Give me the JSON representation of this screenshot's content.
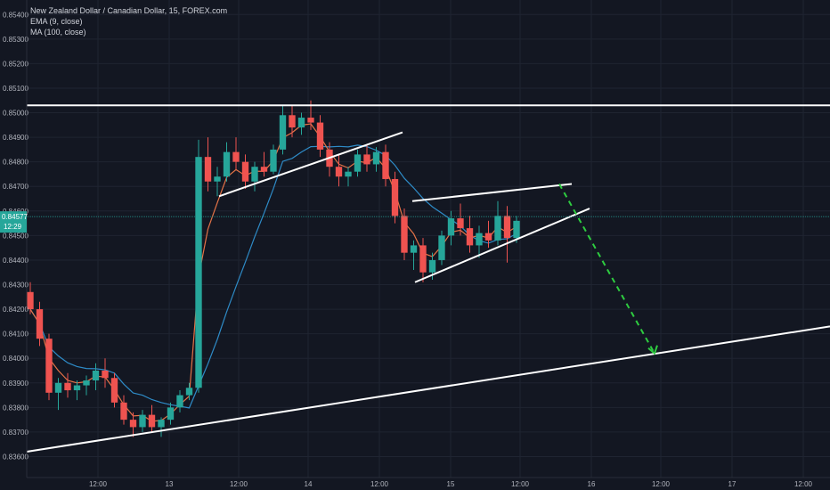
{
  "legend": {
    "title": "New Zealand Dollar / Canadian Dollar, 15, FOREX.com",
    "ema": "EMA (9, close)",
    "ma": "MA (100, close)"
  },
  "colors": {
    "background": "#131722",
    "candle_up": "#26a69a",
    "candle_down": "#ef5350",
    "ema": "#e57347",
    "ma": "#2e8bc7",
    "trendline": "#ffffff",
    "projection": "#2ecc40",
    "price_line": "#26a69a",
    "axis_text": "#b2b5be"
  },
  "chart_data": {
    "type": "candlestick",
    "symbol": "NZDCAD",
    "y_ticks": [
      "0.85400",
      "0.85300",
      "0.85200",
      "0.85100",
      "0.85000",
      "0.84900",
      "0.84800",
      "0.84700",
      "0.84600",
      "0.84500",
      "0.84400",
      "0.84300",
      "0.84200",
      "0.84100",
      "0.84000",
      "0.83900",
      "0.83800",
      "0.83700",
      "0.83600"
    ],
    "x_ticks": [
      "12:00",
      "13",
      "12:00",
      "14",
      "12:00",
      "15",
      "12:00",
      "16",
      "12:00",
      "17",
      "12:00"
    ],
    "ylim": [
      0.8358,
      0.8543
    ],
    "current_price": "0.84577",
    "countdown": "12:29",
    "candles_ohlc_approx": [
      [
        0.8427,
        0.8431,
        0.8418,
        0.842
      ],
      [
        0.842,
        0.8423,
        0.8405,
        0.8408
      ],
      [
        0.8408,
        0.841,
        0.8383,
        0.8386
      ],
      [
        0.8386,
        0.8392,
        0.8379,
        0.839
      ],
      [
        0.839,
        0.8394,
        0.8384,
        0.8387
      ],
      [
        0.8387,
        0.8391,
        0.8383,
        0.8389
      ],
      [
        0.8389,
        0.8393,
        0.8385,
        0.8391
      ],
      [
        0.8391,
        0.8398,
        0.8387,
        0.8395
      ],
      [
        0.8395,
        0.84,
        0.8388,
        0.8392
      ],
      [
        0.8392,
        0.8394,
        0.838,
        0.8382
      ],
      [
        0.8382,
        0.8385,
        0.8373,
        0.8375
      ],
      [
        0.8375,
        0.8378,
        0.8368,
        0.8372
      ],
      [
        0.8372,
        0.8379,
        0.837,
        0.8377
      ],
      [
        0.8377,
        0.8381,
        0.837,
        0.8372
      ],
      [
        0.8372,
        0.8376,
        0.8368,
        0.8375
      ],
      [
        0.8375,
        0.8382,
        0.8373,
        0.838
      ],
      [
        0.838,
        0.8387,
        0.8378,
        0.8385
      ],
      [
        0.8385,
        0.839,
        0.8383,
        0.8388
      ],
      [
        0.8388,
        0.8489,
        0.8386,
        0.8482
      ],
      [
        0.8482,
        0.849,
        0.8468,
        0.8472
      ],
      [
        0.8472,
        0.8478,
        0.8466,
        0.8474
      ],
      [
        0.8474,
        0.8488,
        0.8472,
        0.8484
      ],
      [
        0.8484,
        0.849,
        0.8477,
        0.848
      ],
      [
        0.848,
        0.8483,
        0.8469,
        0.8472
      ],
      [
        0.8472,
        0.848,
        0.8468,
        0.8478
      ],
      [
        0.8478,
        0.8484,
        0.8474,
        0.8476
      ],
      [
        0.8476,
        0.8487,
        0.8475,
        0.8485
      ],
      [
        0.8485,
        0.8503,
        0.8483,
        0.8499
      ],
      [
        0.8499,
        0.8503,
        0.849,
        0.8494
      ],
      [
        0.8494,
        0.85,
        0.8491,
        0.8498
      ],
      [
        0.8498,
        0.8505,
        0.8493,
        0.8496
      ],
      [
        0.8496,
        0.8499,
        0.8482,
        0.8485
      ],
      [
        0.8485,
        0.8488,
        0.8474,
        0.8478
      ],
      [
        0.8478,
        0.8483,
        0.847,
        0.8474
      ],
      [
        0.8474,
        0.8478,
        0.847,
        0.8476
      ],
      [
        0.8476,
        0.8485,
        0.8474,
        0.8483
      ],
      [
        0.8483,
        0.8487,
        0.8476,
        0.8479
      ],
      [
        0.8479,
        0.8486,
        0.8476,
        0.8484
      ],
      [
        0.8484,
        0.8487,
        0.847,
        0.8473
      ],
      [
        0.8473,
        0.8476,
        0.8455,
        0.8458
      ],
      [
        0.8458,
        0.8461,
        0.844,
        0.8443
      ],
      [
        0.8443,
        0.8448,
        0.8436,
        0.8446
      ],
      [
        0.8446,
        0.8449,
        0.8431,
        0.8435
      ],
      [
        0.8435,
        0.8443,
        0.8432,
        0.844
      ],
      [
        0.844,
        0.8452,
        0.8438,
        0.845
      ],
      [
        0.845,
        0.846,
        0.8446,
        0.8457
      ],
      [
        0.8457,
        0.8463,
        0.845,
        0.8453
      ],
      [
        0.8453,
        0.8458,
        0.8443,
        0.8446
      ],
      [
        0.8446,
        0.8454,
        0.8441,
        0.8451
      ],
      [
        0.8451,
        0.8456,
        0.8445,
        0.8448
      ],
      [
        0.8448,
        0.8464,
        0.8446,
        0.8458
      ],
      [
        0.8458,
        0.8462,
        0.8439,
        0.8449
      ],
      [
        0.8449,
        0.8458,
        0.8447,
        0.8456
      ]
    ],
    "trendlines": [
      {
        "name": "resistance",
        "price": 0.8503
      },
      {
        "name": "support-lower",
        "from_price": 0.8362,
        "to_price": 0.8413
      },
      {
        "name": "rising-line-1",
        "from_price": 0.8466,
        "to_price": 0.8492
      },
      {
        "name": "channel-upper",
        "from_price": 0.8464,
        "to_price": 0.8471
      },
      {
        "name": "channel-lower",
        "from_price": 0.8431,
        "to_price": 0.8461
      },
      {
        "name": "projection-arrow",
        "from_price": 0.8471,
        "to_price": 0.8402
      }
    ]
  }
}
